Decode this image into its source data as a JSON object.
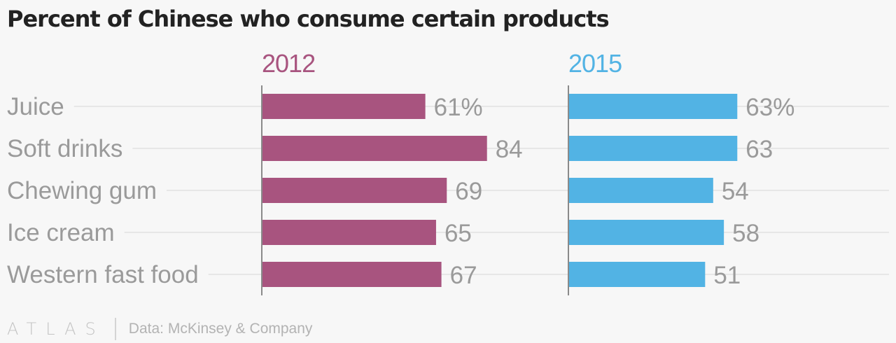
{
  "title": "Percent of Chinese who consume certain products",
  "footer": {
    "logo_text": "ATLAS",
    "source": "Data: McKinsey & Company"
  },
  "colors": {
    "series_2012": "#a8547f",
    "series_2015": "#52b3e4",
    "label_gray": "#9a9a9a",
    "grid": "#e2e2e2",
    "axis": "#8a8a8a"
  },
  "chart_data": {
    "type": "bar",
    "orientation": "horizontal",
    "title": "Percent of Chinese who consume certain products",
    "categories": [
      "Juice",
      "Soft drinks",
      "Chewing gum",
      "Ice cream",
      "Western fast food"
    ],
    "series": [
      {
        "name": "2012",
        "values": [
          61,
          84,
          69,
          65,
          67
        ],
        "labels": [
          "61%",
          "84",
          "69",
          "65",
          "67"
        ],
        "color": "#a8547f"
      },
      {
        "name": "2015",
        "values": [
          63,
          63,
          54,
          58,
          51
        ],
        "labels": [
          "63%",
          "63",
          "54",
          "58",
          "51"
        ],
        "color": "#52b3e4"
      }
    ],
    "xlim": [
      0,
      100
    ],
    "grid": true,
    "legend": "panel headers above each column"
  }
}
